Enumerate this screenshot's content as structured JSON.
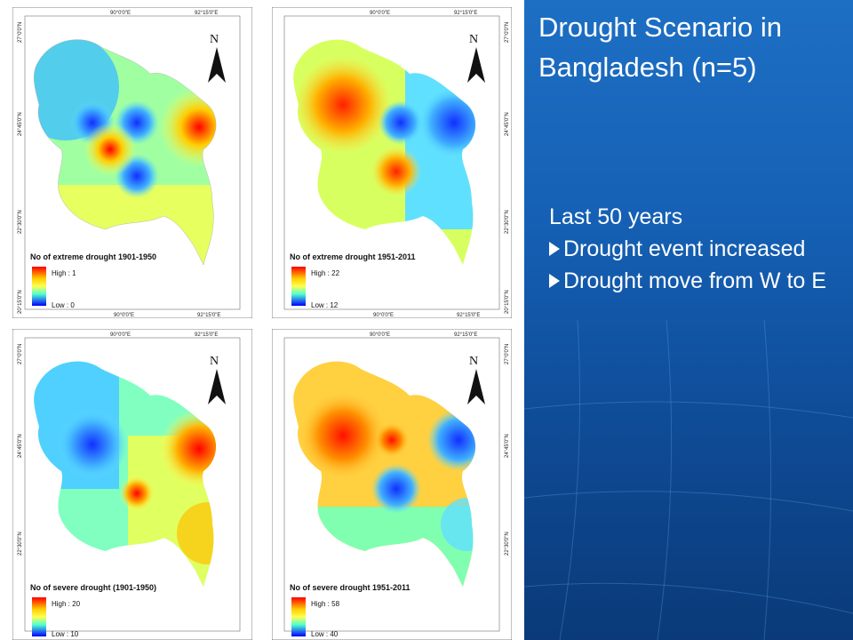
{
  "slide": {
    "title": "Drought Scenario in Bangladesh (n=5)",
    "notes_heading": "Last 50 years",
    "bullets": [
      "Drought event increased",
      "Drought move from W to E"
    ]
  },
  "axes": {
    "top_ticks": [
      "90°0'0\"E",
      "92°15'0\"E"
    ],
    "side_ticks": [
      "27°0'0\"N",
      "24°45'0\"N",
      "22°30'0\"N",
      "20°15'0\"N"
    ],
    "north_label": "N"
  },
  "maps": [
    {
      "legend_title": "No of extreme drought 1901-1950",
      "high": "High : 1",
      "low": "Low : 0"
    },
    {
      "legend_title": "No of extreme drought 1951-2011",
      "high": "High : 22",
      "low": "Low : 12"
    },
    {
      "legend_title": "No of severe drought (1901-1950)",
      "high": "High : 20",
      "low": "Low : 10"
    },
    {
      "legend_title": "No of severe drought 1951-2011",
      "high": "High : 58",
      "low": "Low : 40"
    }
  ],
  "colors": {
    "slide_blue": "#1560b4",
    "ramp": [
      "#ff0000",
      "#ffb000",
      "#ffff50",
      "#50ffd0",
      "#00c8ff",
      "#0000ff"
    ]
  }
}
